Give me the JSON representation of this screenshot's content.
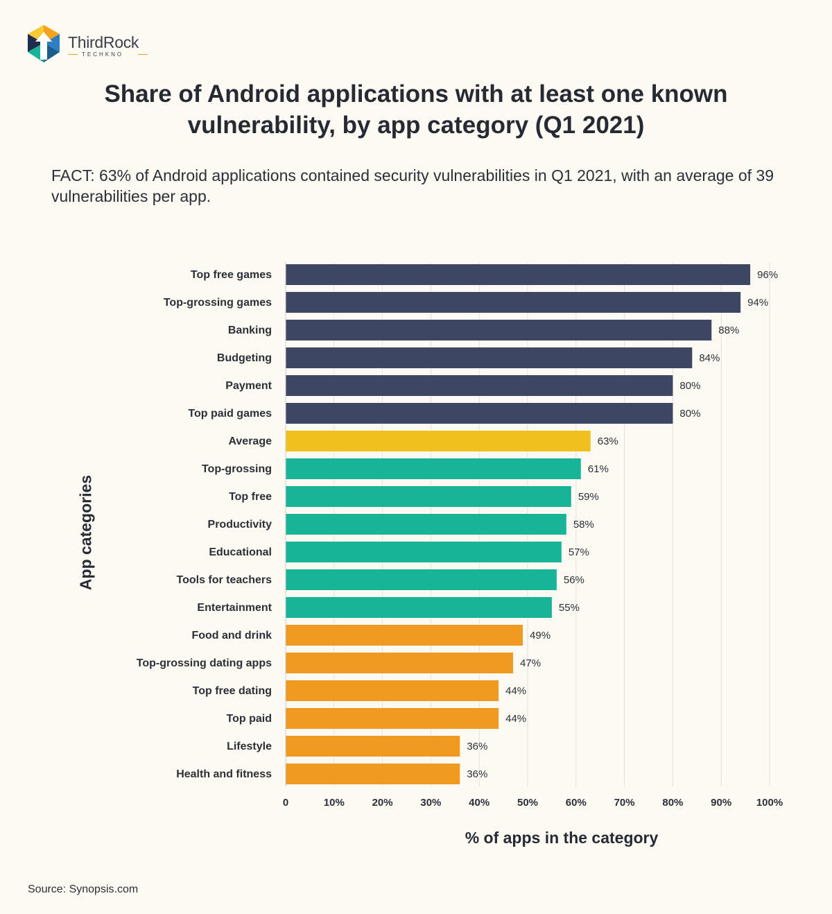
{
  "brand": {
    "name": "ThirdRock",
    "tagline": "TECHKNO"
  },
  "title": "Share of Android applications with at least one known vulnerability, by app category (Q1 2021)",
  "fact": "FACT: 63% of Android applications contained security vulnerabilities in Q1 2021, with an average of 39 vulnerabilities per app.",
  "source": "Source: Synopsis.com",
  "chart_data": {
    "type": "bar",
    "orientation": "horizontal",
    "ylabel": "App categories",
    "xlabel": "% of apps in the category",
    "xlim": [
      0,
      100
    ],
    "x_ticks": [
      "0",
      "10%",
      "20%",
      "30%",
      "40%",
      "50%",
      "60%",
      "70%",
      "80%",
      "90%",
      "100%"
    ],
    "grid": true,
    "categories": [
      "Top free games",
      "Top-grossing games",
      "Banking",
      "Budgeting",
      "Payment",
      "Top paid games",
      "Average",
      "Top-grossing",
      "Top free",
      "Productivity",
      "Educational",
      "Tools for teachers",
      "Entertainment",
      "Food and drink",
      "Top-grossing dating apps",
      "Top free dating",
      "Top paid",
      "Lifestyle",
      "Health and fitness"
    ],
    "values": [
      96,
      94,
      88,
      84,
      80,
      80,
      63,
      61,
      59,
      58,
      57,
      56,
      55,
      49,
      47,
      44,
      44,
      36,
      36
    ],
    "value_labels": [
      "96%",
      "94%",
      "88%",
      "84%",
      "80%",
      "80%",
      "63%",
      "61%",
      "59%",
      "58%",
      "57%",
      "56%",
      "55%",
      "49%",
      "47%",
      "44%",
      "44%",
      "36%",
      "36%"
    ],
    "bar_colors": [
      "#3d4663",
      "#3d4663",
      "#3d4663",
      "#3d4663",
      "#3d4663",
      "#3d4663",
      "#f0c01e",
      "#17b497",
      "#17b497",
      "#17b497",
      "#17b497",
      "#17b497",
      "#17b497",
      "#f19a22",
      "#f19a22",
      "#f19a22",
      "#f19a22",
      "#f19a22",
      "#f19a22"
    ],
    "grid_color": "#e2e0db"
  }
}
